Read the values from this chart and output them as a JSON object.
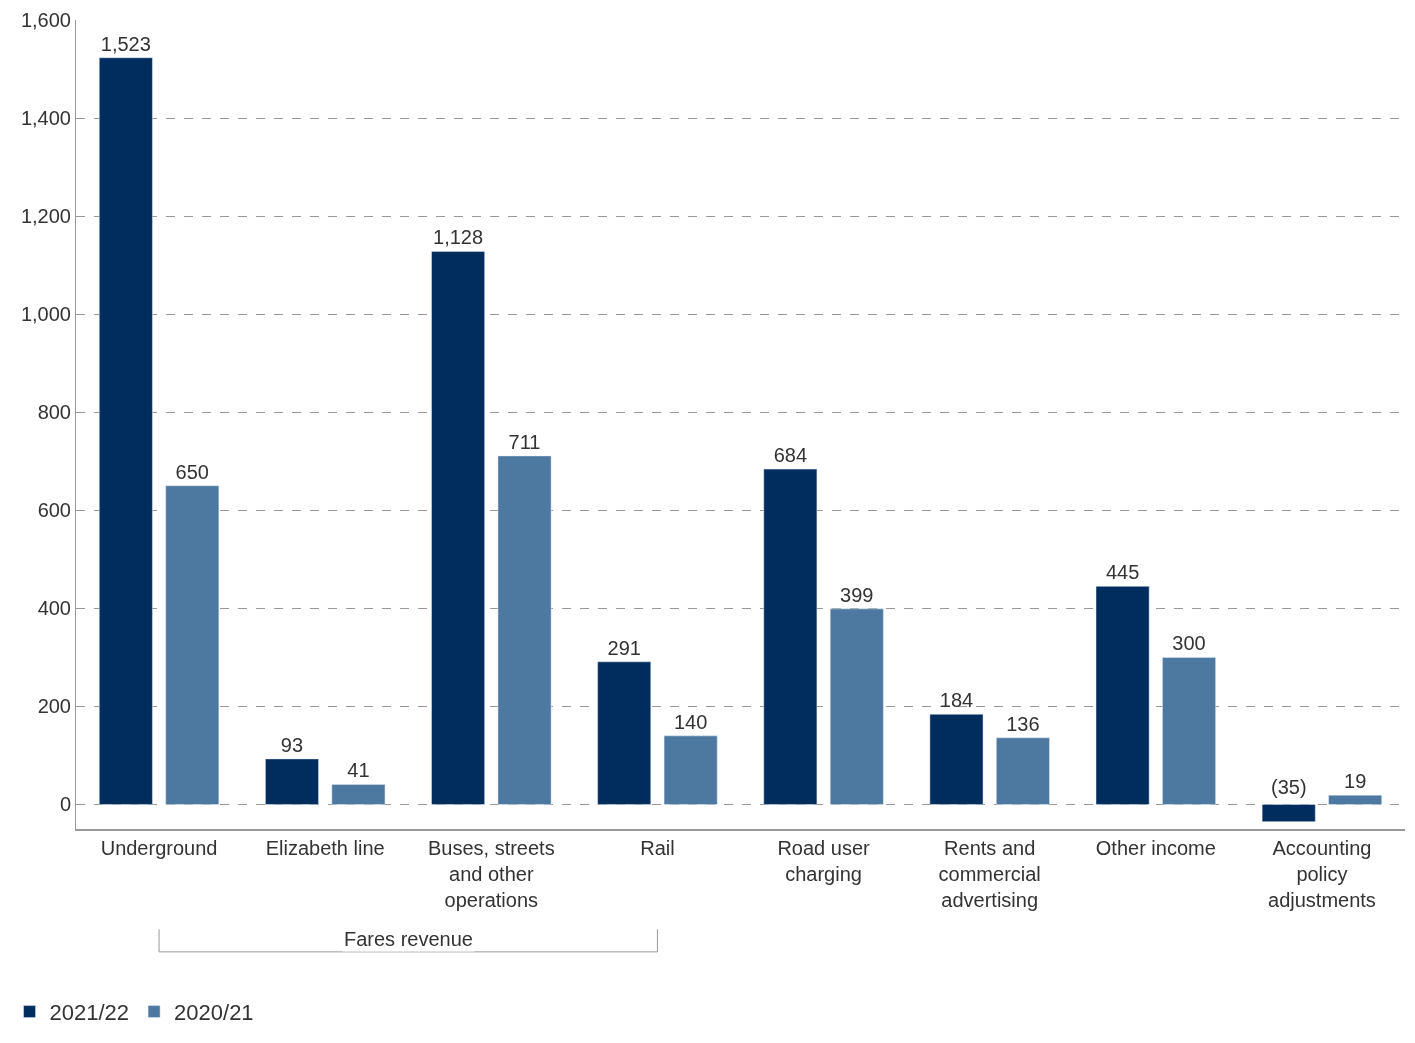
{
  "chart_data": {
    "type": "bar",
    "categories": [
      "Underground",
      "Elizabeth line",
      "Buses, streets and other operations",
      "Rail",
      "Road user charging",
      "Rents and commercial advertising",
      "Other income",
      "Accounting policy adjustments"
    ],
    "series": [
      {
        "name": "2021/22",
        "color": "#002d5e",
        "values": [
          1523,
          93,
          1128,
          291,
          684,
          184,
          445,
          -35
        ],
        "value_labels": [
          "1,523",
          "93",
          "1,128",
          "291",
          "684",
          "184",
          "445",
          "(35)"
        ]
      },
      {
        "name": "2020/21",
        "color": "#4d78a0",
        "values": [
          650,
          41,
          711,
          140,
          399,
          136,
          300,
          19
        ],
        "value_labels": [
          "650",
          "41",
          "711",
          "140",
          "399",
          "136",
          "300",
          "19"
        ]
      }
    ],
    "ylim": [
      -50,
      1600
    ],
    "yticks": [
      0,
      {
        "value": 200,
        "label": "200"
      },
      {
        "value": 400,
        "label": "400"
      },
      {
        "value": 600,
        "label": "600"
      },
      {
        "value": 800,
        "label": "800"
      },
      {
        "value": 1000,
        "label": "1,000"
      },
      {
        "value": 1200,
        "label": "1,200"
      },
      {
        "value": 1400,
        "label": "1,400"
      },
      {
        "value": 1600,
        "label": "1,600"
      }
    ],
    "grid": "y",
    "legend": "bottom left",
    "annotations": [
      "Fares revenue"
    ]
  }
}
